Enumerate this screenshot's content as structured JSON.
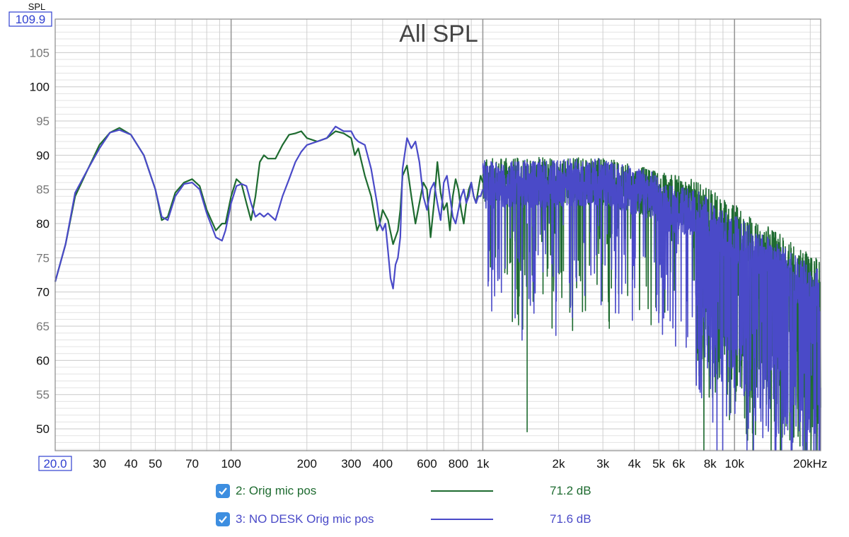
{
  "chart_data": {
    "type": "line",
    "title": "All SPL",
    "y_axis_name": "SPL",
    "y_top_box": "109.9",
    "x_left_box": "20.0",
    "ylim": [
      46.8,
      109.9
    ],
    "xlim": [
      20,
      22000
    ],
    "x_scale": "log",
    "grid": true,
    "y_ticks": [
      {
        "v": 105,
        "label": "105",
        "major": false
      },
      {
        "v": 100,
        "label": "100",
        "major": true
      },
      {
        "v": 95,
        "label": "95",
        "major": false
      },
      {
        "v": 90,
        "label": "90",
        "major": true
      },
      {
        "v": 85,
        "label": "85",
        "major": false
      },
      {
        "v": 80,
        "label": "80",
        "major": true
      },
      {
        "v": 75,
        "label": "75",
        "major": false
      },
      {
        "v": 70,
        "label": "70",
        "major": true
      },
      {
        "v": 65,
        "label": "65",
        "major": false
      },
      {
        "v": 60,
        "label": "60",
        "major": true
      },
      {
        "v": 55,
        "label": "55",
        "major": false
      },
      {
        "v": 50,
        "label": "50",
        "major": true
      }
    ],
    "x_ticks": [
      {
        "v": 30,
        "label": "30"
      },
      {
        "v": 40,
        "label": "40"
      },
      {
        "v": 50,
        "label": "50"
      },
      {
        "v": 70,
        "label": "70"
      },
      {
        "v": 100,
        "label": "100"
      },
      {
        "v": 200,
        "label": "200"
      },
      {
        "v": 300,
        "label": "300"
      },
      {
        "v": 400,
        "label": "400"
      },
      {
        "v": 600,
        "label": "600"
      },
      {
        "v": 800,
        "label": "800"
      },
      {
        "v": 1000,
        "label": "1k"
      },
      {
        "v": 2000,
        "label": "2k"
      },
      {
        "v": 3000,
        "label": "3k"
      },
      {
        "v": 4000,
        "label": "4k"
      },
      {
        "v": 5000,
        "label": "5k"
      },
      {
        "v": 6000,
        "label": "6k"
      },
      {
        "v": 8000,
        "label": "8k"
      },
      {
        "v": 10000,
        "label": "10k"
      },
      {
        "v": 20000,
        "label": "20kHz"
      }
    ],
    "series": [
      {
        "name": "2: Orig mic pos",
        "color": "#1e6b30",
        "level": "71.2 dB",
        "checked": true,
        "x": [
          20,
          22,
          24,
          27,
          30,
          33,
          36,
          40,
          45,
          50,
          53,
          56,
          60,
          65,
          70,
          75,
          80,
          87,
          92,
          95,
          100,
          105,
          110,
          115,
          120,
          125,
          130,
          135,
          140,
          150,
          160,
          170,
          180,
          190,
          200,
          220,
          240,
          260,
          280,
          300,
          310,
          320,
          340,
          360,
          380,
          390,
          400,
          420,
          440,
          460,
          470,
          480,
          500,
          520,
          540,
          560,
          580,
          600,
          620,
          640,
          660,
          680,
          700,
          720,
          740,
          760,
          780,
          800,
          820,
          840,
          860,
          880,
          900,
          920,
          940,
          960,
          980,
          1000
        ],
        "y": [
          71.5,
          77,
          84,
          88,
          91.5,
          93.3,
          94,
          93,
          90,
          85,
          80.5,
          81,
          84.5,
          86,
          86.5,
          85.5,
          82,
          79,
          80,
          80,
          84,
          86.5,
          85.8,
          83,
          80.5,
          84,
          89,
          90,
          89.5,
          89.5,
          91.5,
          93,
          93.2,
          93.5,
          92.5,
          92,
          92.5,
          93.5,
          93.2,
          92.5,
          90,
          91,
          87,
          84,
          79,
          80,
          82,
          80.5,
          77,
          79,
          82,
          87,
          88.5,
          84,
          80,
          83,
          86,
          85,
          78,
          83,
          89,
          84.5,
          82,
          83,
          79,
          84,
          86.5,
          85,
          82,
          80,
          83,
          85,
          86,
          84,
          83,
          85,
          87,
          86
        ]
      },
      {
        "name": "3: NO DESK Orig mic pos",
        "color": "#4a4ac8",
        "level": "71.6 dB",
        "checked": true,
        "x": [
          20,
          22,
          24,
          27,
          30,
          33,
          36,
          40,
          45,
          50,
          53,
          56,
          60,
          65,
          70,
          75,
          80,
          87,
          92,
          95,
          100,
          105,
          110,
          115,
          120,
          125,
          130,
          135,
          140,
          150,
          160,
          170,
          180,
          190,
          200,
          220,
          240,
          260,
          280,
          300,
          310,
          320,
          340,
          360,
          380,
          390,
          400,
          410,
          420,
          430,
          440,
          450,
          460,
          470,
          480,
          500,
          520,
          540,
          560,
          580,
          600,
          620,
          640,
          660,
          680,
          700,
          720,
          740,
          760,
          780,
          800,
          820,
          840,
          860,
          880,
          900,
          920,
          940,
          960,
          980,
          1000
        ],
        "y": [
          71.5,
          77,
          84.5,
          88,
          91,
          93.3,
          93.7,
          93,
          90,
          85,
          81,
          80.5,
          84,
          85.8,
          86,
          85,
          81.5,
          78,
          77.5,
          79,
          83,
          85.5,
          85.8,
          85.5,
          83,
          81,
          81.5,
          81,
          81.5,
          80.5,
          84,
          86.5,
          89,
          90.5,
          91.5,
          92,
          92.5,
          94.2,
          93.5,
          93.5,
          92.5,
          92,
          91.5,
          88,
          83,
          80,
          79,
          80,
          76,
          72,
          70.5,
          74,
          75,
          78,
          88,
          92.5,
          91,
          92,
          89,
          84,
          82,
          85,
          86,
          83,
          80.5,
          86,
          87,
          84,
          81,
          80,
          82,
          84,
          85,
          83,
          84,
          86,
          84,
          83,
          84,
          84,
          85
        ]
      }
    ]
  },
  "legend": {
    "items": [
      {
        "label": "2: Orig mic pos",
        "value": "71.2 dB",
        "color": "#1e6b30",
        "checked": true
      },
      {
        "label": "3: NO DESK Orig mic pos",
        "value": "71.6 dB",
        "color": "#4a4ac8",
        "checked": true
      }
    ]
  }
}
